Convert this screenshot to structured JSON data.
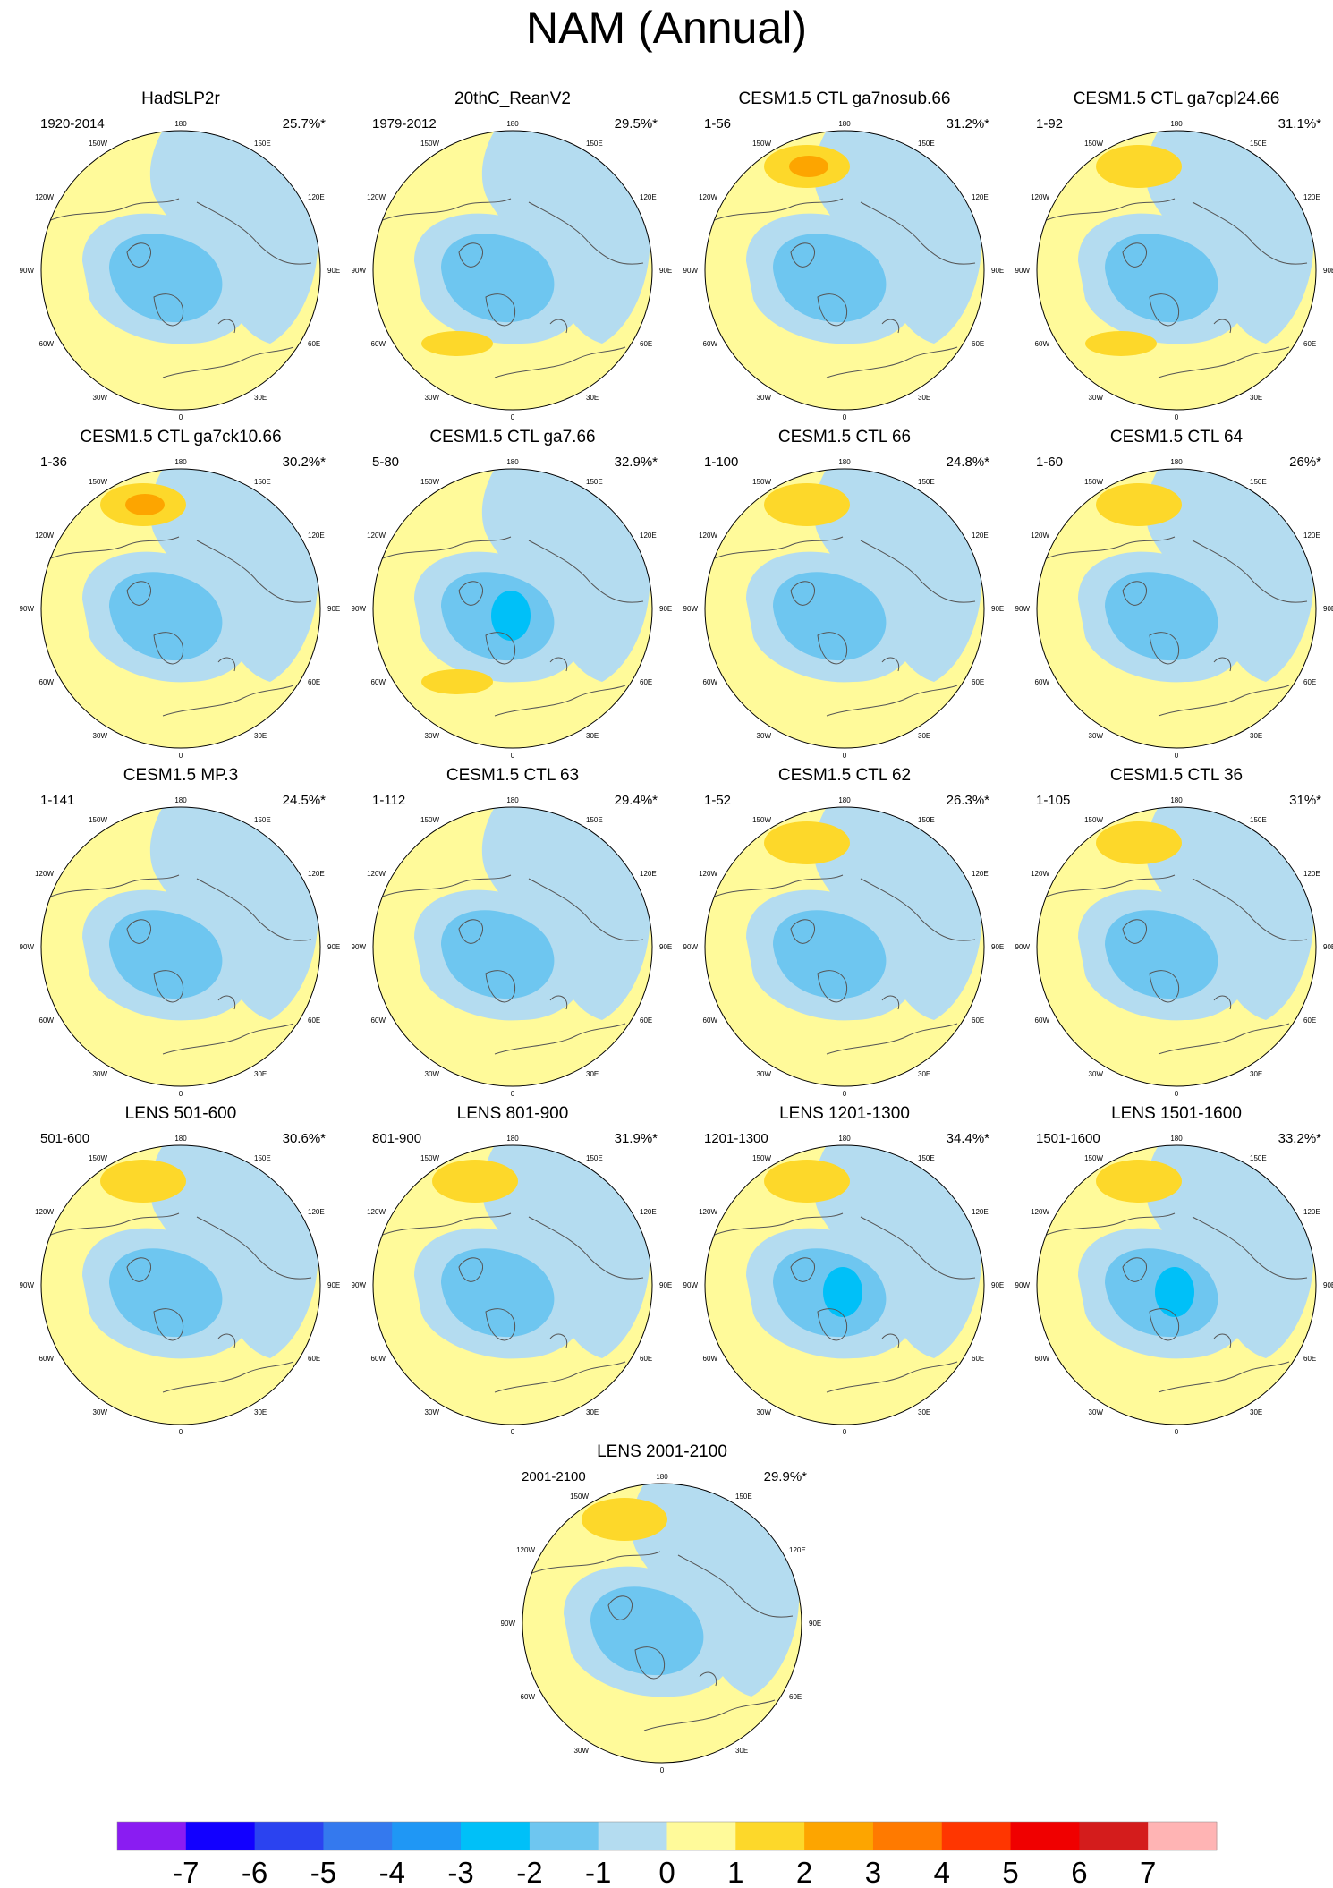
{
  "title": "NAM (Annual)",
  "colors": {
    "cold1": "#b4dcf0",
    "cold2": "#6ec6f0",
    "cold3": "#00c0f8",
    "warm1": "#fdd82a",
    "warm2": "#fda500",
    "background": "#fffa9a",
    "coast": "#555555"
  },
  "chart_data": {
    "type": "heatmap",
    "title": "NAM (Annual)",
    "projection": "north polar stereographic",
    "longitude_labels": [
      "180",
      "150E",
      "120E",
      "90E",
      "60E",
      "30E",
      "0",
      "30W",
      "60W",
      "90W",
      "120W",
      "150W"
    ],
    "colorbar": {
      "levels": [
        "-7",
        "-6",
        "-5",
        "-4",
        "-3",
        "-2",
        "-1",
        "0",
        "1",
        "2",
        "3",
        "4",
        "5",
        "6",
        "7"
      ],
      "colors": [
        "#8a1cf2",
        "#1200ff",
        "#2b43f0",
        "#3479ee",
        "#1f97f5",
        "#00c0f8",
        "#6ec6f0",
        "#b4dcf0",
        "#fffa9a",
        "#fdd82a",
        "#fda500",
        "#ff7a00",
        "#ff3600",
        "#f00000",
        "#d41c1c",
        "#ffb4b4"
      ]
    },
    "panels": [
      {
        "title": "HadSLP2r",
        "period": "1920-2014",
        "pct": "25.7%*",
        "pac": 0,
        "atl": 0
      },
      {
        "title": "20thC_ReanV2",
        "period": "1979-2012",
        "pct": "29.5%*",
        "pac": 0,
        "atl": 1
      },
      {
        "title": "CESM1.5 CTL ga7nosub.66",
        "period": "1-56",
        "pct": "31.2%*",
        "pac": 2,
        "atl": 0
      },
      {
        "title": "CESM1.5 CTL ga7cpl24.66",
        "period": "1-92",
        "pct": "31.1%*",
        "pac": 1,
        "atl": 1
      },
      {
        "title": "CESM1.5 CTL ga7ck10.66",
        "period": "1-36",
        "pct": "30.2%*",
        "pac": 2,
        "atl": 0
      },
      {
        "title": "CESM1.5 CTL ga7.66",
        "period": "5-80",
        "pct": "32.9%*",
        "pac": 0,
        "atl": 1
      },
      {
        "title": "CESM1.5 CTL 66",
        "period": "1-100",
        "pct": "24.8%*",
        "pac": 1,
        "atl": 0
      },
      {
        "title": "CESM1.5 CTL 64",
        "period": "1-60",
        "pct": "26%*",
        "pac": 1,
        "atl": 0
      },
      {
        "title": "CESM1.5 MP.3",
        "period": "1-141",
        "pct": "24.5%*",
        "pac": 0,
        "atl": 0
      },
      {
        "title": "CESM1.5 CTL 63",
        "period": "1-112",
        "pct": "29.4%*",
        "pac": 0,
        "atl": 0
      },
      {
        "title": "CESM1.5 CTL 62",
        "period": "1-52",
        "pct": "26.3%*",
        "pac": 1,
        "atl": 0
      },
      {
        "title": "CESM1.5 CTL 36",
        "period": "1-105",
        "pct": "31%*",
        "pac": 1,
        "atl": 0
      },
      {
        "title": "LENS 501-600",
        "period": "501-600",
        "pct": "30.6%*",
        "pac": 1,
        "atl": 0
      },
      {
        "title": "LENS 801-900",
        "period": "801-900",
        "pct": "31.9%*",
        "pac": 1,
        "atl": 0
      },
      {
        "title": "LENS 1201-1300",
        "period": "1201-1300",
        "pct": "34.4%*",
        "pac": 1,
        "atl": 0
      },
      {
        "title": "LENS 1501-1600",
        "period": "1501-1600",
        "pct": "33.2%*",
        "pac": 1,
        "atl": 0
      },
      {
        "title": "LENS 2001-2100",
        "period": "2001-2100",
        "pct": "29.9%*",
        "pac": 1,
        "atl": 0
      }
    ]
  }
}
